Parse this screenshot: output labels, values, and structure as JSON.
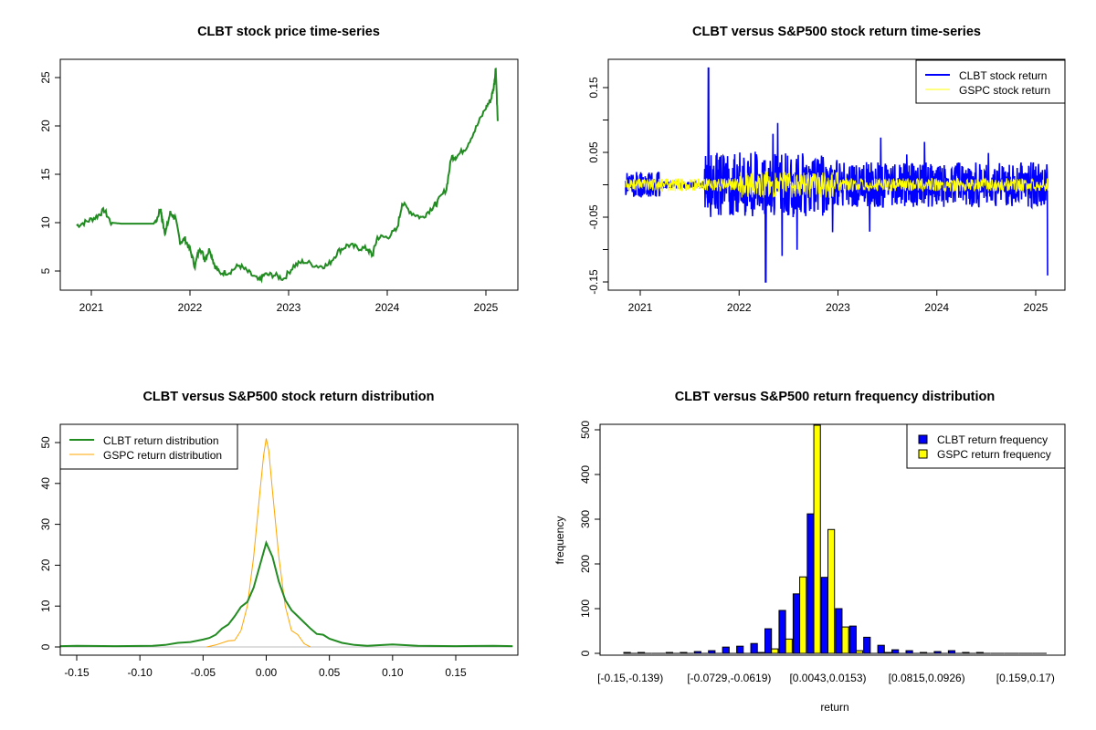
{
  "chart_data": [
    {
      "id": "price",
      "type": "line",
      "title": "CLBT stock price time-series",
      "xlabel": "",
      "ylabel": "",
      "x_ticks": [
        "2021",
        "2022",
        "2023",
        "2024",
        "2025"
      ],
      "y_ticks": [
        "5",
        "10",
        "15",
        "20",
        "25"
      ],
      "xlim": [
        2020.85,
        2025.25
      ],
      "ylim": [
        3.1,
        26.9
      ],
      "color": "#228B22",
      "series": [
        {
          "name": "CLBT",
          "x": [
            2020.85,
            2020.95,
            2021.05,
            2021.13,
            2021.2,
            2021.3,
            2021.5,
            2021.65,
            2021.7,
            2021.72,
            2021.75,
            2021.8,
            2021.85,
            2021.9,
            2021.95,
            2022.0,
            2022.05,
            2022.1,
            2022.15,
            2022.2,
            2022.25,
            2022.3,
            2022.4,
            2022.5,
            2022.6,
            2022.7,
            2022.75,
            2022.85,
            2022.95,
            2023.05,
            2023.15,
            2023.3,
            2023.4,
            2023.5,
            2023.6,
            2023.7,
            2023.8,
            2023.85,
            2023.9,
            2024.0,
            2024.1,
            2024.15,
            2024.25,
            2024.35,
            2024.45,
            2024.5,
            2024.6,
            2024.65,
            2024.7,
            2024.8,
            2024.9,
            2025.0,
            2025.05,
            2025.08,
            2025.1,
            2025.12
          ],
          "y": [
            9.7,
            10.1,
            10.6,
            11.3,
            10.0,
            9.9,
            9.9,
            9.9,
            11.5,
            10.2,
            8.9,
            11.0,
            10.5,
            8.0,
            8.3,
            7.2,
            5.5,
            7.5,
            6.2,
            7.3,
            5.6,
            4.8,
            4.9,
            5.6,
            4.8,
            4.0,
            4.6,
            4.6,
            4.2,
            5.5,
            6.0,
            5.5,
            5.6,
            7.0,
            7.7,
            7.4,
            7.3,
            6.6,
            8.5,
            8.5,
            9.3,
            12.0,
            11.0,
            10.5,
            11.5,
            12.0,
            13.5,
            16.8,
            16.8,
            17.8,
            19.8,
            21.9,
            22.7,
            24.0,
            26.0,
            20.5
          ]
        }
      ]
    },
    {
      "id": "returns",
      "type": "line",
      "title": "CLBT versus S&P500 stock return time-series",
      "x_ticks": [
        "2021",
        "2022",
        "2023",
        "2024",
        "2025"
      ],
      "y_ticks": [
        "-0.15",
        "-0.05",
        "0.05",
        "0.15"
      ],
      "xlim": [
        2020.85,
        2025.25
      ],
      "ylim": [
        -0.175,
        0.19
      ],
      "legend": {
        "position": "top-right",
        "entries": [
          "CLBT stock return",
          "GSPC stock return"
        ]
      },
      "series": [
        {
          "name": "CLBT stock return",
          "color": "#0000FF",
          "peaks": {
            "max": 0.18,
            "min": -0.15,
            "last": -0.14
          }
        },
        {
          "name": "GSPC stock return",
          "color": "#FFFF00",
          "peaks": {
            "max": 0.055,
            "min": -0.045
          }
        }
      ]
    },
    {
      "id": "density",
      "type": "line",
      "title": "CLBT versus S&P500 stock return distribution",
      "x_ticks": [
        "-0.15",
        "-0.10",
        "-0.05",
        "0.00",
        "0.05",
        "0.10",
        "0.15"
      ],
      "y_ticks": [
        "0",
        "10",
        "20",
        "30",
        "40",
        "50"
      ],
      "xlim": [
        -0.163,
        0.195
      ],
      "ylim": [
        -2,
        54.5
      ],
      "legend": {
        "position": "top-left",
        "entries": [
          "CLBT return distribution",
          "GSPC return distribution"
        ]
      },
      "series": [
        {
          "name": "CLBT return distribution",
          "color": "#228B22",
          "x": [
            -0.163,
            -0.15,
            -0.12,
            -0.09,
            -0.08,
            -0.07,
            -0.06,
            -0.05,
            -0.045,
            -0.04,
            -0.035,
            -0.03,
            -0.025,
            -0.02,
            -0.015,
            -0.01,
            -0.005,
            0.0,
            0.005,
            0.01,
            0.015,
            0.02,
            0.025,
            0.03,
            0.035,
            0.04,
            0.045,
            0.05,
            0.06,
            0.07,
            0.08,
            0.1,
            0.12,
            0.15,
            0.18,
            0.195
          ],
          "y": [
            0.2,
            0.3,
            0.2,
            0.3,
            0.5,
            1.0,
            1.2,
            1.8,
            2.2,
            3.0,
            4.5,
            5.5,
            7.5,
            9.8,
            11.0,
            14.5,
            20.0,
            25.5,
            22.0,
            16.0,
            11.5,
            9.0,
            7.5,
            6.0,
            4.5,
            3.2,
            3.0,
            2.0,
            1.0,
            0.5,
            0.3,
            0.6,
            0.3,
            0.2,
            0.3,
            0.2
          ]
        },
        {
          "name": "GSPC return distribution",
          "color": "#FFA500",
          "x": [
            -0.047,
            -0.04,
            -0.03,
            -0.025,
            -0.02,
            -0.015,
            -0.01,
            -0.005,
            -0.002,
            0.0,
            0.002,
            0.005,
            0.01,
            0.015,
            0.02,
            0.025,
            0.03,
            0.035
          ],
          "y": [
            0.0,
            0.5,
            1.5,
            1.6,
            4.0,
            10.0,
            22.0,
            38.0,
            47.0,
            51.0,
            48.0,
            38.0,
            22.0,
            10.0,
            4.0,
            3.0,
            0.8,
            0.0
          ]
        },
        {
          "name": "baseline",
          "color": "#BEBEBE",
          "x": [
            -0.163,
            0.195
          ],
          "y": [
            0,
            0
          ]
        }
      ]
    },
    {
      "id": "histogram",
      "type": "bar",
      "title": "CLBT versus S&P500 return frequency distribution",
      "xlabel": "return",
      "ylabel": "frequency",
      "y_ticks": [
        "0",
        "100",
        "200",
        "300",
        "400",
        "500"
      ],
      "x_tick_labels": [
        "[-0.15,-0.139)",
        "[-0.0729,-0.0619)",
        "[0.0043,0.0153)",
        "[0.0815,0.0926)",
        "[0.159,0.17)"
      ],
      "x_tick_label_bins": [
        0,
        7,
        14,
        21,
        28
      ],
      "ylim": [
        0,
        515
      ],
      "legend": {
        "position": "top-right",
        "entries": [
          "CLBT return frequency",
          "GSPC return frequency"
        ]
      },
      "bins": 30,
      "series": [
        {
          "name": "CLBT return frequency",
          "color": "#0000FF",
          "values": [
            2,
            2,
            0,
            2,
            2,
            4,
            6,
            14,
            16,
            22,
            55,
            96,
            133,
            312,
            170,
            100,
            61,
            36,
            18,
            8,
            6,
            2,
            4,
            6,
            2,
            2,
            0,
            0,
            0,
            0
          ]
        },
        {
          "name": "GSPC return frequency",
          "color": "#FFFF00",
          "values": [
            0,
            0,
            0,
            0,
            0,
            0,
            0,
            0,
            0,
            2,
            10,
            32,
            171,
            515,
            277,
            59,
            6,
            0,
            2,
            0,
            0,
            0,
            0,
            0,
            0,
            0,
            0,
            0,
            0,
            0
          ]
        }
      ]
    }
  ]
}
